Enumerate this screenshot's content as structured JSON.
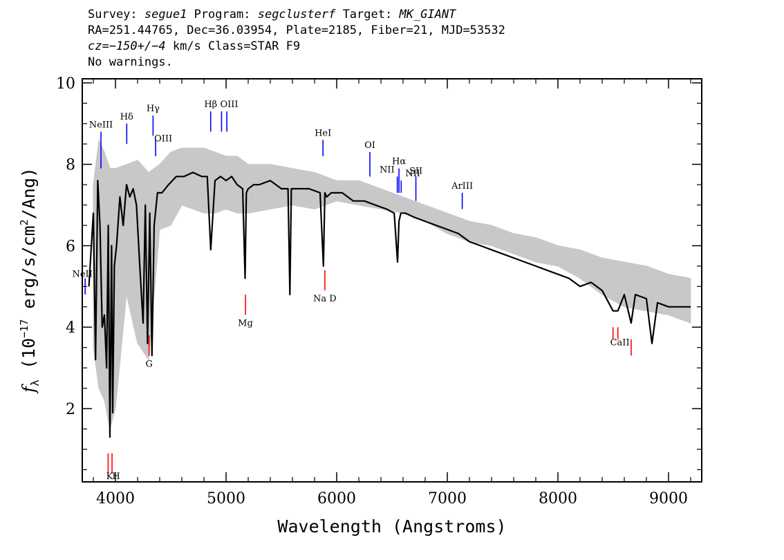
{
  "header": {
    "line1": {
      "survey_label": "Survey:",
      "survey": "segue1",
      "program_label": "Program:",
      "program": "segclusterf",
      "target_label": "Target:",
      "target": "MK_GIANT"
    },
    "line2": "RA=251.44765, Dec=36.03954, Plate=2185, Fiber=21, MJD=53532",
    "line3": {
      "cz": "cz=−150+/−4",
      "rest": "km/s Class=STAR F9"
    },
    "line4": "No warnings."
  },
  "chart_data": {
    "type": "line",
    "xlabel": "Wavelength (Angstroms)",
    "ylabel_prefix": "f",
    "ylabel_sub": "λ",
    "ylabel_rest": " (10",
    "ylabel_exp": "−17",
    "ylabel_units": " erg/s/cm",
    "ylabel_exp2": "2",
    "ylabel_tail": "/Ang)",
    "xlim": [
      3700,
      9300
    ],
    "ylim": [
      0.2,
      10.1
    ],
    "xticks": [
      4000,
      5000,
      6000,
      7000,
      8000,
      9000
    ],
    "xtick_labels": [
      "4000",
      "5000",
      "6000",
      "7000",
      "8000",
      "9000"
    ],
    "yticks": [
      2,
      4,
      6,
      8,
      10
    ],
    "ytick_labels": [
      "2",
      "4",
      "6",
      "8",
      "10"
    ],
    "colors": {
      "flux": "#000000",
      "error_band": "#c8c8c8",
      "emission": "#0000ff",
      "absorption": "#ff0000"
    },
    "series": [
      {
        "style": "gray error envelope",
        "x": [
          3800,
          3850,
          3900,
          3950,
          4000,
          4100,
          4200,
          4300,
          4400,
          4500,
          4600,
          4700,
          4800,
          4900,
          5000,
          5100,
          5200,
          5400,
          5600,
          5800,
          6000,
          6200,
          6400,
          6600,
          6800,
          7000,
          7200,
          7400,
          7600,
          7800,
          8000,
          8200,
          8400,
          8600,
          8800,
          9000,
          9200
        ],
        "upper": [
          7.5,
          8.6,
          8.3,
          7.9,
          7.9,
          8.0,
          8.1,
          7.8,
          8.0,
          8.3,
          8.4,
          8.4,
          8.4,
          8.3,
          8.2,
          8.2,
          8.0,
          8.0,
          7.9,
          7.8,
          7.6,
          7.6,
          7.4,
          7.2,
          7.0,
          6.8,
          6.6,
          6.5,
          6.3,
          6.2,
          6.0,
          5.9,
          5.7,
          5.6,
          5.5,
          5.3,
          5.2
        ],
        "lower": [
          3.5,
          2.5,
          2.2,
          1.5,
          2.0,
          4.8,
          3.6,
          3.2,
          6.4,
          6.5,
          7.0,
          6.9,
          6.8,
          6.8,
          6.9,
          6.8,
          6.8,
          6.9,
          7.0,
          6.9,
          7.1,
          7.0,
          6.9,
          6.8,
          6.6,
          6.3,
          6.1,
          6.0,
          5.8,
          5.6,
          5.5,
          5.2,
          4.8,
          4.5,
          4.4,
          4.3,
          4.1
        ]
      },
      {
        "style": "black flux",
        "x": [
          3760,
          3800,
          3820,
          3840,
          3860,
          3880,
          3900,
          3920,
          3935,
          3950,
          3965,
          3975,
          3990,
          4010,
          4040,
          4070,
          4100,
          4130,
          4160,
          4190,
          4220,
          4250,
          4270,
          4290,
          4310,
          4330,
          4350,
          4380,
          4420,
          4480,
          4550,
          4620,
          4700,
          4780,
          4830,
          4861,
          4900,
          4950,
          5000,
          5050,
          5100,
          5150,
          5172,
          5183,
          5200,
          5250,
          5300,
          5400,
          5500,
          5560,
          5577,
          5590,
          5650,
          5750,
          5850,
          5880,
          5893,
          5910,
          5950,
          6050,
          6150,
          6250,
          6350,
          6450,
          6520,
          6550,
          6563,
          6580,
          6620,
          6700,
          6800,
          6900,
          7000,
          7100,
          7200,
          7300,
          7400,
          7500,
          7600,
          7700,
          7800,
          7900,
          8000,
          8100,
          8200,
          8300,
          8400,
          8498,
          8542,
          8600,
          8662,
          8700,
          8800,
          8850,
          8900,
          9000,
          9100,
          9200
        ],
        "y": [
          5.0,
          6.8,
          3.2,
          7.6,
          6.5,
          4.0,
          4.3,
          3.0,
          6.5,
          1.3,
          6.0,
          1.9,
          5.5,
          6.0,
          7.2,
          6.5,
          7.5,
          7.2,
          7.4,
          7.0,
          5.5,
          4.1,
          7.0,
          3.6,
          6.8,
          3.3,
          6.5,
          7.3,
          7.3,
          7.5,
          7.7,
          7.7,
          7.8,
          7.7,
          7.7,
          5.9,
          7.6,
          7.7,
          7.6,
          7.7,
          7.5,
          7.4,
          5.2,
          7.3,
          7.4,
          7.5,
          7.5,
          7.6,
          7.4,
          7.4,
          4.8,
          7.4,
          7.4,
          7.4,
          7.3,
          5.5,
          7.3,
          7.2,
          7.3,
          7.3,
          7.1,
          7.1,
          7.0,
          6.9,
          6.8,
          5.6,
          6.6,
          6.8,
          6.8,
          6.7,
          6.6,
          6.5,
          6.4,
          6.3,
          6.1,
          6.0,
          5.9,
          5.8,
          5.7,
          5.6,
          5.5,
          5.4,
          5.3,
          5.2,
          5.0,
          5.1,
          4.9,
          4.4,
          4.4,
          4.8,
          4.1,
          4.8,
          4.7,
          3.6,
          4.6,
          4.5,
          4.5,
          4.5
        ]
      }
    ],
    "line_labels": [
      {
        "text": "NeIII",
        "x": 3869,
        "kind": "emission",
        "y0": 7.9,
        "y1": 8.8
      },
      {
        "text": "Hδ",
        "x": 4102,
        "kind": "emission",
        "y0": 8.5,
        "y1": 9.0
      },
      {
        "text": "Hγ",
        "x": 4340,
        "kind": "emission",
        "y0": 8.7,
        "y1": 9.2
      },
      {
        "text": "OIII",
        "x": 4363,
        "kind": "emission",
        "y0": 8.2,
        "y1": 8.6
      },
      {
        "text": "Hβ",
        "x": 4861,
        "kind": "emission",
        "y0": 8.8,
        "y1": 9.3
      },
      {
        "text": "OIII",
        "x": 4959,
        "kind": "emission",
        "y0": 8.8,
        "y1": 9.3
      },
      {
        "text": "OIII",
        "x": 5007,
        "kind": "emission",
        "y0": 8.8,
        "y1": 9.3
      },
      {
        "text": "HeI",
        "x": 5876,
        "kind": "emission",
        "y0": 8.2,
        "y1": 8.6
      },
      {
        "text": "OI",
        "x": 6300,
        "kind": "emission",
        "y0": 7.7,
        "y1": 8.3
      },
      {
        "text": "NII",
        "x": 6548,
        "kind": "emission",
        "y0": 7.3,
        "y1": 7.7
      },
      {
        "text": "Hα",
        "x": 6563,
        "kind": "emission",
        "y0": 7.3,
        "y1": 7.9
      },
      {
        "text": "NII",
        "x": 6583,
        "kind": "emission",
        "y0": 7.3,
        "y1": 7.6
      },
      {
        "text": "SII",
        "x": 6716,
        "kind": "emission",
        "y0": 7.1,
        "y1": 7.7
      },
      {
        "text": "ArIII",
        "x": 7135,
        "kind": "emission",
        "y0": 6.9,
        "y1": 7.3
      },
      {
        "text": "NeII",
        "x": 3726,
        "kind": "emission",
        "y0": 4.8,
        "y1": 5.2
      },
      {
        "text": "K",
        "x": 3934,
        "kind": "absorption",
        "y0": 0.4,
        "y1": 0.9
      },
      {
        "text": "H",
        "x": 3969,
        "kind": "absorption",
        "y0": 0.4,
        "y1": 0.9
      },
      {
        "text": "G",
        "x": 4304,
        "kind": "absorption",
        "y0": 3.3,
        "y1": 3.8
      },
      {
        "text": "Mg",
        "x": 5175,
        "kind": "absorption",
        "y0": 4.3,
        "y1": 4.8
      },
      {
        "text": "Na D",
        "x": 5893,
        "kind": "absorption",
        "y0": 4.9,
        "y1": 5.4
      },
      {
        "text": "CaII",
        "x": 8498,
        "kind": "absorption",
        "y0": 3.7,
        "y1": 4.0
      },
      {
        "text": "CaII",
        "x": 8542,
        "kind": "absorption",
        "y0": 3.7,
        "y1": 4.0
      },
      {
        "text": "CaII",
        "x": 8662,
        "kind": "absorption",
        "y0": 3.3,
        "y1": 3.7
      }
    ]
  }
}
